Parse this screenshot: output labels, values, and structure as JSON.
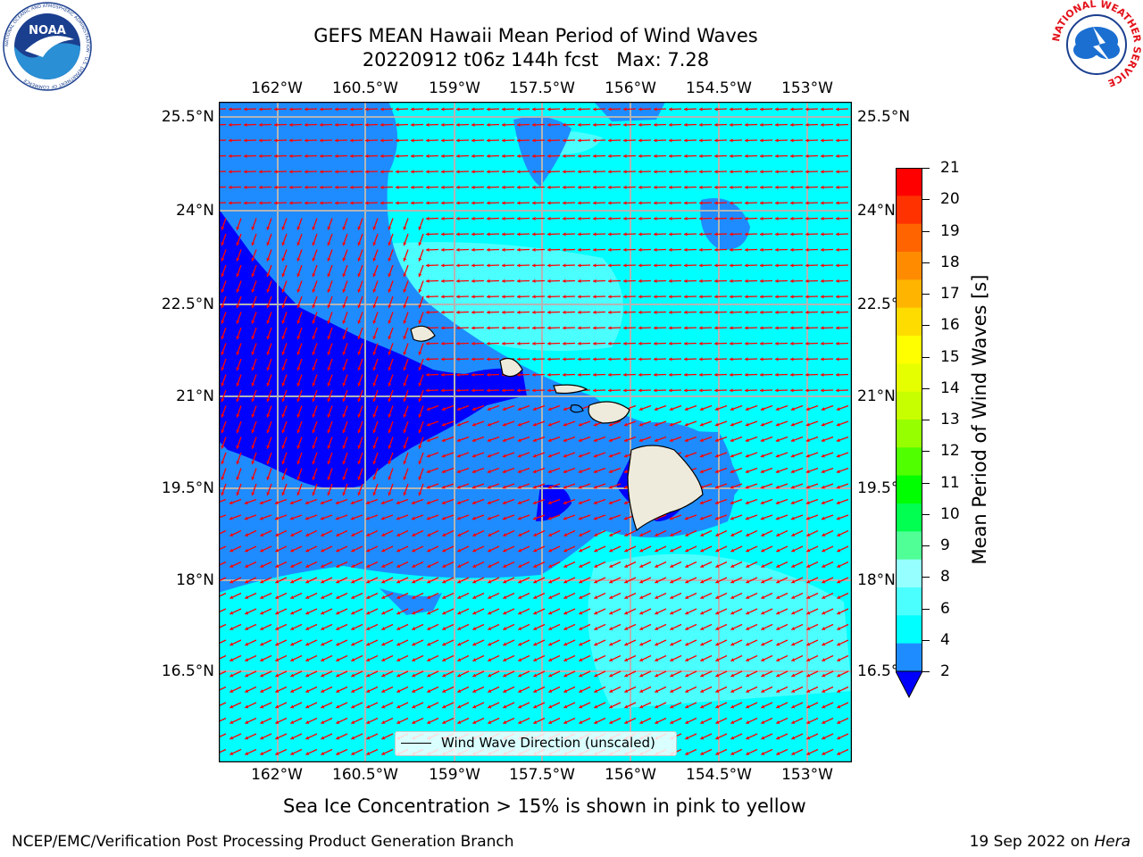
{
  "header": {
    "title_line1": "GEFS MEAN Hawaii Mean Period of Wind Waves",
    "title_line2": "20220912 t06z 144h fcst   Max: 7.28"
  },
  "logos": {
    "left_logo_name": "NOAA",
    "left_logo_ring_text": "NATIONAL OCEANIC AND ATMOSPHERIC ADMINISTRATION · U.S. DEPARTMENT OF COMMERCE",
    "right_logo_ring_text": "NATIONAL WEATHER SERVICE"
  },
  "map": {
    "lon_labels": [
      "162°W",
      "160.5°W",
      "159°W",
      "157.5°W",
      "156°W",
      "154.5°W",
      "153°W"
    ],
    "lat_labels": [
      "25.5°N",
      "24°N",
      "22.5°N",
      "21°N",
      "19.5°N",
      "18°N",
      "16.5°N"
    ],
    "legend_text": "Wind Wave Direction (unscaled)",
    "colors": {
      "period_2_4": "#1e8cff",
      "period_4_6": "#00ffff",
      "period_6_8": "#4cffff",
      "below_2": "#0000ff",
      "land": "#efebdc",
      "arrows": "#ff0000",
      "grid": "#b4b4b4"
    }
  },
  "colorbar": {
    "title": "Mean Period of Wind Waves [s]",
    "labels": [
      "21",
      "20",
      "19",
      "18",
      "17",
      "16",
      "15",
      "14",
      "13",
      "12",
      "11",
      "10",
      "9",
      "8",
      "6",
      "4",
      "2"
    ],
    "colors": [
      "#ff0000",
      "#ff3200",
      "#ff6400",
      "#ff8c00",
      "#ffb400",
      "#ffdc00",
      "#ffff00",
      "#e6ff00",
      "#c8ff00",
      "#96ff00",
      "#50ff00",
      "#00ff00",
      "#00ff50",
      "#50ff96",
      "#96ffff",
      "#4cffff",
      "#00ffff",
      "#1e8cff"
    ],
    "under_color": "#0000ff"
  },
  "note": "Sea Ice Concentration > 15% is shown in pink to yellow",
  "footer": {
    "left": "NCEP/EMC/Verification Post Processing Product Generation Branch",
    "right_prefix": "19 Sep 2022 on ",
    "right_italic": "Hera"
  }
}
